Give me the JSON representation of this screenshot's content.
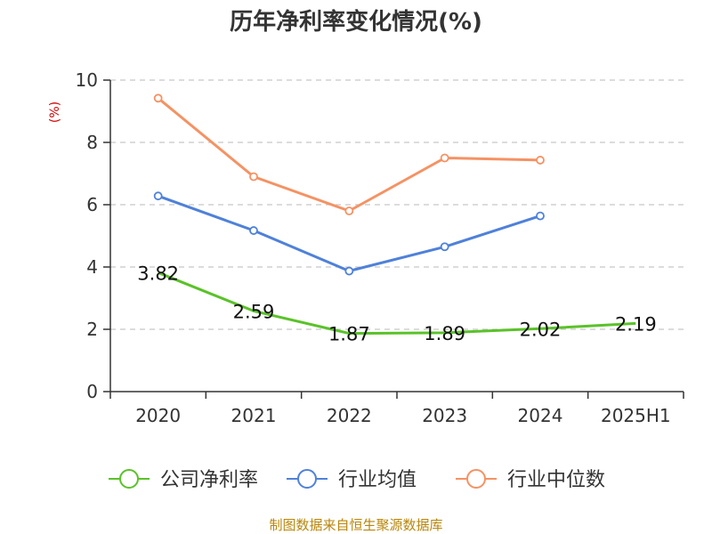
{
  "chart_data": {
    "type": "line",
    "title": "历年净利率变化情况(%)",
    "ylabel": "(%)",
    "xlabel": "",
    "categories": [
      "2020",
      "2021",
      "2022",
      "2023",
      "2024",
      "2025H1"
    ],
    "ylim": [
      0,
      10
    ],
    "yticks": [
      0,
      2,
      4,
      6,
      8,
      10
    ],
    "grid": true,
    "legend_position": "bottom",
    "series": [
      {
        "name": "公司净利率",
        "color": "#5ac229",
        "values": [
          3.82,
          2.59,
          1.87,
          1.89,
          2.02,
          2.19
        ],
        "labels": [
          "3.82",
          "2.59",
          "1.87",
          "1.89",
          "2.02",
          "2.19"
        ]
      },
      {
        "name": "行业均值",
        "color": "#4f81d9",
        "values": [
          6.28,
          5.17,
          3.87,
          4.65,
          5.64,
          null
        ]
      },
      {
        "name": "行业中位数",
        "color": "#f59263",
        "values": [
          9.42,
          6.9,
          5.8,
          7.5,
          7.43,
          null
        ]
      }
    ]
  },
  "source_text": "制图数据来自恒生聚源数据库"
}
